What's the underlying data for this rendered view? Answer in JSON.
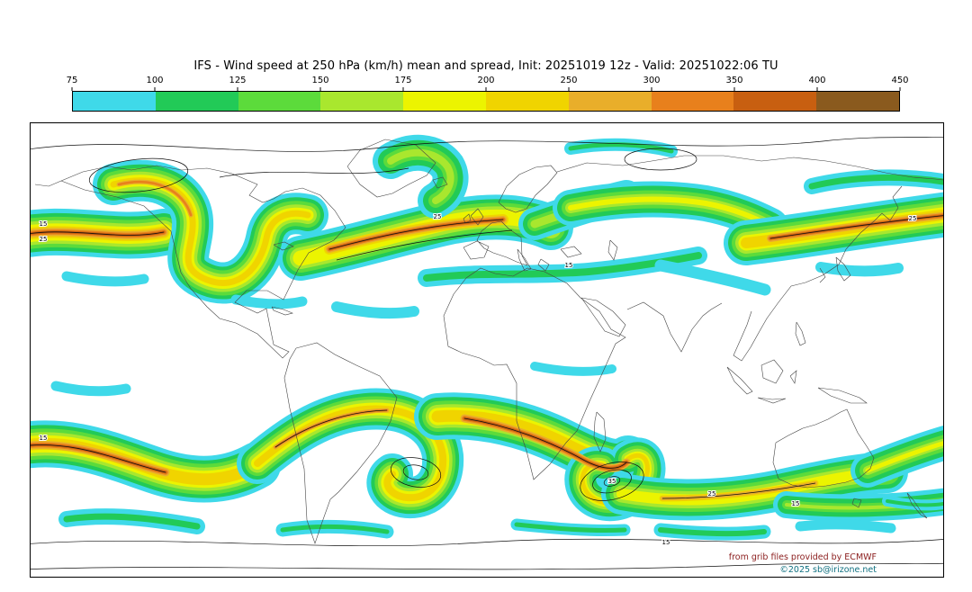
{
  "title": "IFS - Wind speed at 250 hPa (km/h) mean and spread, Init: 20251019 12z - Valid: 20251022:06 TU",
  "colorbar": {
    "tick_labels": [
      "75",
      "100",
      "125",
      "150",
      "175",
      "200",
      "250",
      "300",
      "350",
      "400",
      "450"
    ],
    "segment_colors": [
      "#3fd9e9",
      "#22ca57",
      "#5cdb3b",
      "#a9e72e",
      "#ecf400",
      "#f0d400",
      "#e9ae2a",
      "#e8801c",
      "#c85f10",
      "#8a5a1e"
    ]
  },
  "map": {
    "attribution_line1": "from grib files provided by ECMWF",
    "attribution_line2": "©2025 sb@irizone.net",
    "attribution_color1": "#8b1d1d",
    "attribution_color2": "#0f7080",
    "contour_labels": [
      "15",
      "25",
      "25",
      "15",
      "25",
      "15",
      "35",
      "25",
      "15",
      "15"
    ]
  },
  "chart_data": {
    "type": "heatmap",
    "title": "IFS - Wind speed at 250 hPa (km/h) mean and spread",
    "init": "20251019 12z",
    "valid": "20251022:06 TU",
    "variable": "Wind speed at 250 hPa",
    "units": "km/h",
    "colorbar_levels": [
      75,
      100,
      125,
      150,
      175,
      200,
      250,
      300,
      350,
      400,
      450
    ],
    "colorbar_colors": [
      "#3fd9e9",
      "#22ca57",
      "#5cdb3b",
      "#a9e72e",
      "#ecf400",
      "#f0d400",
      "#e9ae2a",
      "#e8801c",
      "#c85f10",
      "#8a5a1e"
    ],
    "spread_contour_label_values": [
      15,
      25,
      35
    ],
    "projection": "equirectangular-world",
    "legend_position": "top",
    "grid": false
  }
}
